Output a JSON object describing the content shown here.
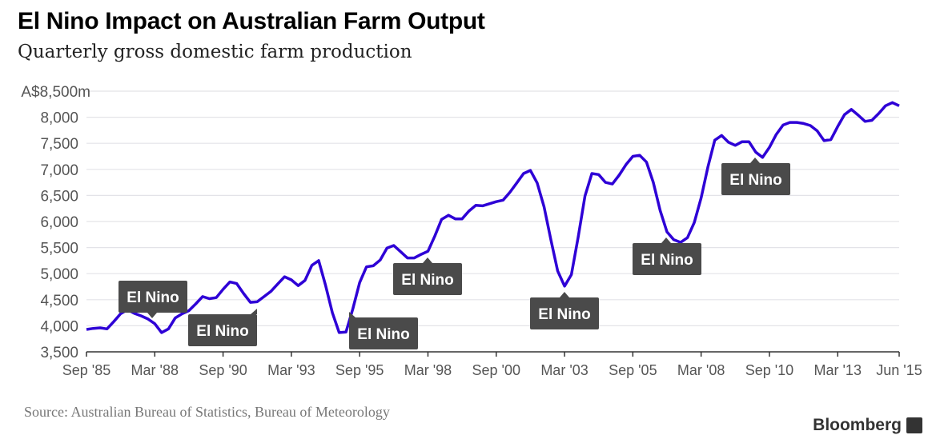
{
  "title": "El Nino Impact on Australian Farm Output",
  "subtitle": "Quarterly gross domestic farm production",
  "source": "Source: Australian Bureau of Statistics, Bureau of Meteorology",
  "logo": "Bloomberg",
  "colors": {
    "line": "#2e00d6",
    "annotation": "#4a4a4a",
    "grid": "#e3e3e8"
  },
  "chart_data": {
    "type": "line",
    "title": "El Nino Impact on Australian Farm Output",
    "ylabel": "A$m",
    "ylim": [
      3500,
      8500
    ],
    "yticks": [
      {
        "value": 8500,
        "label": "A$8,500m"
      },
      {
        "value": 8000,
        "label": "8,000"
      },
      {
        "value": 7500,
        "label": "7,500"
      },
      {
        "value": 7000,
        "label": "7,000"
      },
      {
        "value": 6500,
        "label": "6,500"
      },
      {
        "value": 6000,
        "label": "6,000"
      },
      {
        "value": 5500,
        "label": "5,500"
      },
      {
        "value": 5000,
        "label": "5,000"
      },
      {
        "value": 4500,
        "label": "4,500"
      },
      {
        "value": 4000,
        "label": "4,000"
      },
      {
        "value": 3500,
        "label": "3,500"
      }
    ],
    "xticks": [
      {
        "q": 0,
        "label": "Sep '85"
      },
      {
        "q": 10,
        "label": "Mar '88"
      },
      {
        "q": 20,
        "label": "Sep '90"
      },
      {
        "q": 30,
        "label": "Mar '93"
      },
      {
        "q": 40,
        "label": "Sep '95"
      },
      {
        "q": 50,
        "label": "Mar '98"
      },
      {
        "q": 60,
        "label": "Sep '00"
      },
      {
        "q": 70,
        "label": "Mar '03"
      },
      {
        "q": 80,
        "label": "Sep '05"
      },
      {
        "q": 90,
        "label": "Mar '08"
      },
      {
        "q": 100,
        "label": "Sep '10"
      },
      {
        "q": 110,
        "label": "Mar '13"
      },
      {
        "q": 119,
        "label": "Jun '15"
      }
    ],
    "x_start": "Sep '85",
    "x_end": "Jun '15",
    "grid": true,
    "series": [
      {
        "name": "Gross domestic farm production",
        "values": [
          3930,
          3950,
          3960,
          3940,
          4080,
          4230,
          4310,
          4240,
          4190,
          4130,
          4040,
          3870,
          3940,
          4150,
          4230,
          4290,
          4420,
          4560,
          4520,
          4540,
          4700,
          4840,
          4810,
          4620,
          4450,
          4460,
          4560,
          4660,
          4800,
          4940,
          4880,
          4770,
          4870,
          5160,
          5250,
          4780,
          4250,
          3870,
          3880,
          4320,
          4830,
          5130,
          5150,
          5260,
          5490,
          5540,
          5420,
          5300,
          5300,
          5370,
          5430,
          5720,
          6040,
          6120,
          6050,
          6050,
          6200,
          6310,
          6300,
          6340,
          6380,
          6410,
          6560,
          6740,
          6920,
          6980,
          6740,
          6280,
          5650,
          5050,
          4760,
          4980,
          5700,
          6490,
          6920,
          6900,
          6750,
          6720,
          6890,
          7090,
          7250,
          7270,
          7140,
          6750,
          6210,
          5800,
          5650,
          5600,
          5690,
          5980,
          6450,
          7050,
          7560,
          7650,
          7520,
          7460,
          7530,
          7530,
          7330,
          7230,
          7420,
          7670,
          7850,
          7900,
          7900,
          7880,
          7840,
          7740,
          7550,
          7570,
          7820,
          8050,
          8150,
          8040,
          7920,
          7940,
          8070,
          8220,
          8280,
          8220
        ]
      }
    ],
    "annotations": [
      {
        "label": "El Nino",
        "q": 10
      },
      {
        "label": "El Nino",
        "q": 24
      },
      {
        "label": "El Nino",
        "q": 38
      },
      {
        "label": "El Nino",
        "q": 50
      },
      {
        "label": "El Nino",
        "q": 70
      },
      {
        "label": "El Nino",
        "q": 85
      },
      {
        "label": "El Nino",
        "q": 98
      }
    ]
  }
}
